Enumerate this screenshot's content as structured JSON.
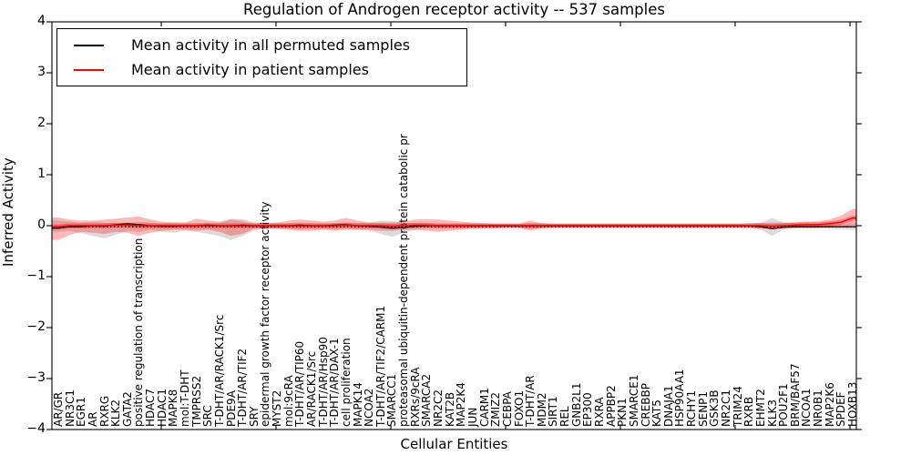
{
  "chart_data": {
    "type": "line",
    "title": "Regulation of Androgen receptor activity -- 537 samples",
    "xlabel": "Cellular Entities",
    "ylabel": "Inferred Activity",
    "ylim": [
      -4,
      4
    ],
    "yticks": [
      "4",
      "3",
      "2",
      "1",
      "0",
      "−1",
      "−2",
      "−3",
      "−4"
    ],
    "ytick_values": [
      4,
      3,
      2,
      1,
      0,
      -1,
      -2,
      -3,
      -4
    ],
    "grid": false,
    "legend_position": "upper left",
    "legend": [
      {
        "label": "Mean activity in all permuted samples",
        "color": "#000000"
      },
      {
        "label": "Mean activity in patient samples",
        "color": "#ff0000"
      }
    ],
    "colors": {
      "patient_line": "#ff0000",
      "permuted_line": "#000000",
      "patient_band": "#ff0000",
      "patient_band_alpha": 0.28,
      "patient_band_inner_alpha": 0.33,
      "permuted_band": "#000000",
      "permuted_band_alpha": 0.14,
      "zero_line": "#000000"
    },
    "categories": [
      "AR/GR",
      "NR3C1",
      "EGR1",
      "AR",
      "RXRG",
      "KLK2",
      "GATA2",
      "positive regulation of transcription",
      "HDAC7",
      "HDAC1",
      "MAPK8",
      "mol:T-DHT",
      "TMPRSS2",
      "SRC",
      "T-DHT/AR/RACK1/Src",
      "PDE9A",
      "T-DHT/AR/TIF2",
      "SRY",
      "epidermal growth factor receptor activity",
      "MYST2",
      "mol:9cRA",
      "T-DHT/AR/TIP60",
      "AR/RACK1/Src",
      "T-DHT/AR/Hsp90",
      "T-DHT/AR/DAX-1",
      "cell proliferation",
      "MAPK14",
      "NCOA2",
      "T-DHT/AR/TIF2/CARM1",
      "SMARCC1",
      "proteasomal ubiquitin-dependent protein catabolic pr",
      "RXRs/9cRA",
      "SMARCA2",
      "NR2C2",
      "KAT2B",
      "MAP2K4",
      "JUN",
      "CARM1",
      "ZMIZ2",
      "CEBPA",
      "FOXO1",
      "T-DHT/AR",
      "MDM2",
      "SIRT1",
      "REL",
      "GNB2L1",
      "EP300",
      "RXRA",
      "APPBP2",
      "PKN1",
      "SMARCE1",
      "CREBBP",
      "KAT5",
      "DNAJA1",
      "HSP90AA1",
      "RCHY1",
      "SENP1",
      "GSK3B",
      "NR2C1",
      "TRIM24",
      "RXRB",
      "EHMT2",
      "KLK3",
      "POU2F1",
      "BRM/BAF57",
      "NCOA1",
      "NR0B1",
      "MAP2K6",
      "SPDEF",
      "HOXB13"
    ],
    "series": [
      {
        "name": "Mean activity in all permuted samples",
        "values": [
          -0.05,
          -0.02,
          -0.02,
          0.0,
          -0.01,
          0.02,
          0.04,
          0.02,
          0.0,
          -0.01,
          -0.01,
          0.0,
          0.0,
          0.01,
          0.0,
          0.0,
          0.01,
          0.0,
          0.0,
          0.0,
          0.0,
          0.01,
          0.0,
          0.0,
          0.01,
          0.02,
          0.0,
          -0.01,
          -0.03,
          -0.05,
          -0.04,
          -0.01,
          0.0,
          0.0,
          0.0,
          0.0,
          0.0,
          0.0,
          0.0,
          0.0,
          0.0,
          0.0,
          0.0,
          0.0,
          0.0,
          0.0,
          0.0,
          0.0,
          0.0,
          0.0,
          0.0,
          0.0,
          0.0,
          0.0,
          0.0,
          0.0,
          0.0,
          0.0,
          0.0,
          0.0,
          0.0,
          -0.02,
          -0.06,
          -0.03,
          -0.02,
          -0.02,
          -0.02,
          -0.02,
          -0.02,
          -0.02
        ]
      },
      {
        "name": "Mean activity in patient samples",
        "values": [
          -0.02,
          0,
          0,
          0,
          0,
          0.01,
          0.01,
          0,
          0,
          0,
          0,
          0,
          0,
          0,
          0,
          0,
          0,
          0,
          0,
          0,
          0,
          0,
          0,
          0,
          0,
          0.01,
          0,
          0,
          0,
          -0.01,
          0,
          0.01,
          0.01,
          0,
          0,
          0,
          0,
          0,
          0,
          0,
          0,
          0,
          0,
          0,
          0,
          0,
          0,
          0,
          0,
          0,
          0,
          0,
          0,
          0,
          0,
          0,
          0,
          0,
          0,
          0,
          0,
          0,
          -0.01,
          0,
          0.01,
          0.02,
          0.02,
          0.04,
          0.07,
          0.15
        ]
      }
    ],
    "bands": {
      "patient_upper": [
        0.16,
        0.12,
        0.1,
        0.1,
        0.12,
        0.14,
        0.16,
        0.18,
        0.12,
        0.08,
        0.07,
        0.06,
        0.14,
        0.1,
        0.08,
        0.13,
        0.12,
        0.06,
        0.05,
        0.06,
        0.1,
        0.12,
        0.1,
        0.08,
        0.1,
        0.15,
        0.1,
        0.06,
        0.06,
        0.06,
        0.08,
        0.12,
        0.13,
        0.12,
        0.1,
        0.08,
        0.06,
        0.05,
        0.04,
        0.04,
        0.04,
        0.1,
        0.05,
        0.04,
        0.04,
        0.04,
        0.04,
        0.04,
        0.04,
        0.04,
        0.04,
        0.04,
        0.04,
        0.04,
        0.04,
        0.04,
        0.04,
        0.04,
        0.04,
        0.04,
        0.05,
        0.05,
        0.06,
        0.06,
        0.07,
        0.08,
        0.09,
        0.12,
        0.2,
        0.33
      ],
      "patient_lower": [
        -0.28,
        -0.18,
        -0.12,
        -0.14,
        -0.16,
        -0.12,
        -0.14,
        -0.2,
        -0.14,
        -0.1,
        -0.08,
        -0.08,
        -0.1,
        -0.08,
        -0.12,
        -0.2,
        -0.16,
        -0.06,
        -0.05,
        -0.06,
        -0.08,
        -0.1,
        -0.1,
        -0.08,
        -0.1,
        -0.08,
        -0.08,
        -0.08,
        -0.1,
        -0.1,
        -0.08,
        -0.08,
        -0.1,
        -0.12,
        -0.1,
        -0.08,
        -0.06,
        -0.05,
        -0.05,
        -0.04,
        -0.04,
        -0.1,
        -0.05,
        -0.04,
        -0.04,
        -0.04,
        -0.04,
        -0.04,
        -0.04,
        -0.04,
        -0.04,
        -0.04,
        -0.04,
        -0.04,
        -0.04,
        -0.04,
        -0.04,
        -0.04,
        -0.04,
        -0.04,
        -0.04,
        -0.05,
        -0.07,
        -0.05,
        -0.04,
        -0.04,
        -0.04,
        -0.03,
        -0.02,
        0.0
      ],
      "permuted_upper": [
        0.1,
        0.08,
        0.06,
        0.08,
        0.06,
        0.05,
        0.06,
        0.08,
        0.06,
        0.05,
        0.05,
        0.04,
        0.05,
        0.06,
        0.05,
        0.12,
        0.08,
        0.04,
        0.04,
        0.04,
        0.05,
        0.06,
        0.05,
        0.04,
        0.05,
        0.06,
        0.05,
        0.06,
        0.1,
        0.09,
        0.06,
        0.05,
        0.04,
        0.04,
        0.04,
        0.04,
        0.03,
        0.03,
        0.03,
        0.03,
        0.03,
        0.05,
        0.03,
        0.03,
        0.03,
        0.03,
        0.03,
        0.03,
        0.03,
        0.03,
        0.03,
        0.03,
        0.03,
        0.03,
        0.03,
        0.03,
        0.03,
        0.03,
        0.03,
        0.03,
        0.03,
        0.06,
        0.15,
        0.06,
        0.04,
        0.04,
        0.04,
        0.04,
        0.04,
        0.05
      ],
      "permuted_lower": [
        -0.12,
        -0.1,
        -0.15,
        -0.2,
        -0.25,
        -0.18,
        -0.1,
        -0.12,
        -0.08,
        -0.12,
        -0.14,
        -0.1,
        -0.12,
        -0.16,
        -0.2,
        -0.28,
        -0.2,
        -0.1,
        -0.06,
        -0.05,
        -0.06,
        -0.08,
        -0.06,
        -0.06,
        -0.08,
        -0.06,
        -0.08,
        -0.1,
        -0.16,
        -0.22,
        -0.14,
        -0.08,
        -0.06,
        -0.05,
        -0.05,
        -0.05,
        -0.04,
        -0.04,
        -0.04,
        -0.04,
        -0.04,
        -0.06,
        -0.04,
        -0.04,
        -0.04,
        -0.04,
        -0.04,
        -0.04,
        -0.04,
        -0.04,
        -0.04,
        -0.04,
        -0.04,
        -0.04,
        -0.05,
        -0.05,
        -0.04,
        -0.04,
        -0.04,
        -0.04,
        -0.05,
        -0.08,
        -0.2,
        -0.08,
        -0.05,
        -0.06,
        -0.06,
        -0.06,
        -0.07,
        -0.08
      ]
    }
  }
}
